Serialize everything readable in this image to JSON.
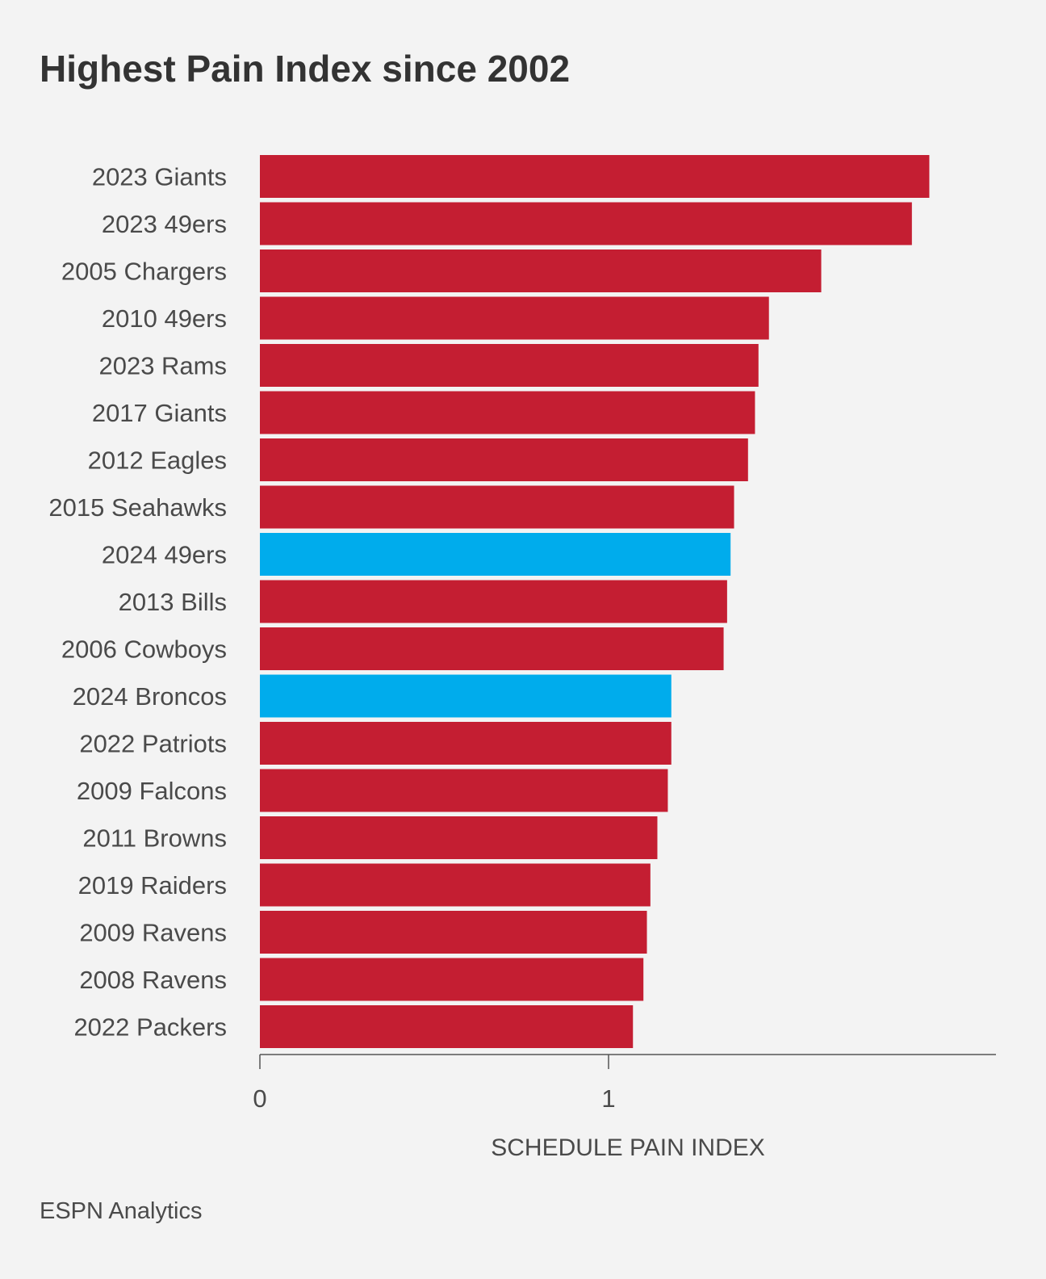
{
  "chart_data": {
    "type": "bar",
    "orientation": "horizontal",
    "title": "Highest Pain Index since 2002",
    "xlabel": "SCHEDULE PAIN INDEX",
    "ylabel": "",
    "xlim": [
      0,
      2.1
    ],
    "xticks": [
      0,
      1
    ],
    "xtick_labels": [
      "0",
      "1"
    ],
    "grid": false,
    "legend": "none",
    "categories": [
      "2023 Giants",
      "2023 49ers",
      "2005 Chargers",
      "2010 49ers",
      "2023 Rams",
      "2017 Giants",
      "2012 Eagles",
      "2015 Seahawks",
      "2024 49ers",
      "2013 Bills",
      "2006 Cowboys",
      "2024 Broncos",
      "2022 Patriots",
      "2009 Falcons",
      "2011 Browns",
      "2019 Raiders",
      "2009 Ravens",
      "2008 Ravens",
      "2022 Packers"
    ],
    "values": [
      1.92,
      1.87,
      1.61,
      1.46,
      1.43,
      1.42,
      1.4,
      1.36,
      1.35,
      1.34,
      1.33,
      1.18,
      1.18,
      1.17,
      1.14,
      1.12,
      1.11,
      1.1,
      1.07
    ],
    "highlighted": [
      "2024 49ers",
      "2024 Broncos"
    ],
    "colors": {
      "default": "#c41e32",
      "highlight": "#00acec",
      "axis": "#555555"
    }
  },
  "footer": {
    "source": "ESPN Analytics"
  }
}
